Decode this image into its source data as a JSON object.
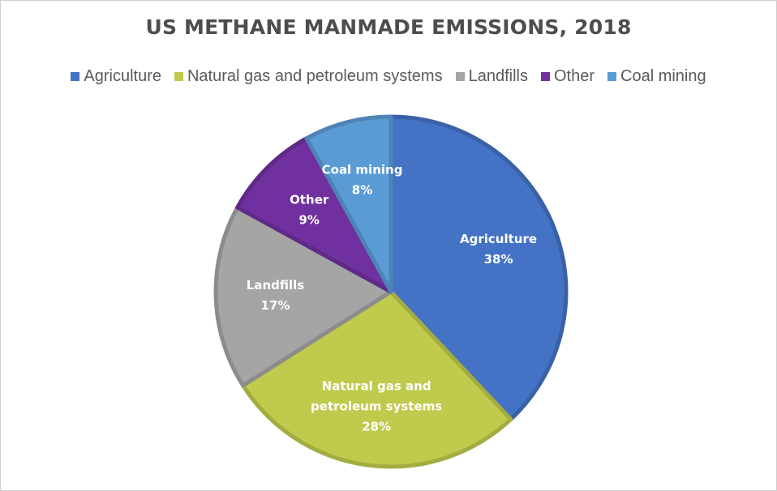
{
  "chart_data": {
    "type": "pie",
    "title": "US METHANE MANMADE EMISSIONS, 2018",
    "legend_position": "top",
    "slices": [
      {
        "label": "Agriculture",
        "value": 38,
        "value_label": "38%",
        "color": "#4472C4",
        "label_lines": [
          "Agriculture"
        ]
      },
      {
        "label": "Natural gas and petroleum systems",
        "value": 28,
        "value_label": "28%",
        "color": "#C0CA4C",
        "label_lines": [
          "Natural gas and",
          "petroleum systems"
        ]
      },
      {
        "label": "Landfills",
        "value": 17,
        "value_label": "17%",
        "color": "#A5A5A5",
        "label_lines": [
          "Landfills"
        ]
      },
      {
        "label": "Other",
        "value": 9,
        "value_label": "9%",
        "color": "#7030A0",
        "label_lines": [
          "Other"
        ]
      },
      {
        "label": "Coal mining",
        "value": 8,
        "value_label": "8%",
        "color": "#5B9BD5",
        "label_lines": [
          "Coal mining"
        ]
      }
    ]
  }
}
